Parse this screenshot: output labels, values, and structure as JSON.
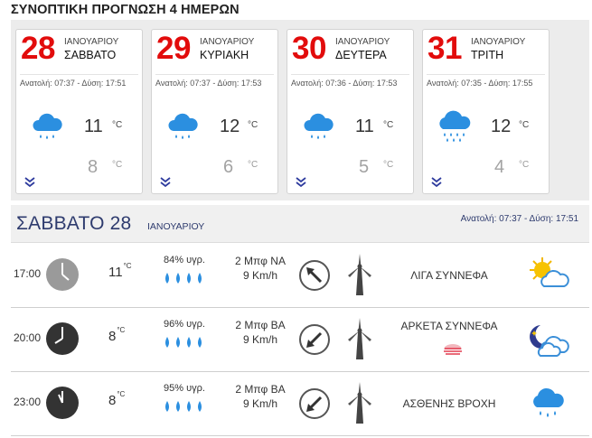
{
  "header": {
    "title": "ΣΥΝΟΠΤΙΚΗ ΠΡΟΓΝΩΣΗ 4 ΗΜΕΡΩΝ"
  },
  "days": [
    {
      "day": "28",
      "month": "ΙΑΝΟΥΑΡΙΟΥ",
      "name": "ΣΑΒΒΑΤΟ",
      "sun": "Ανατολή: 07:37 - Δύση: 17:51",
      "tmax": "11",
      "tmin": "8",
      "unit": "°C",
      "icon": "rain-cloud-icon"
    },
    {
      "day": "29",
      "month": "ΙΑΝΟΥΑΡΙΟΥ",
      "name": "ΚΥΡΙΑΚΗ",
      "sun": "Ανατολή: 07:37 - Δύση: 17:53",
      "tmax": "12",
      "tmin": "6",
      "unit": "°C",
      "icon": "rain-cloud-icon"
    },
    {
      "day": "30",
      "month": "ΙΑΝΟΥΑΡΙΟΥ",
      "name": "ΔΕΥΤΕΡΑ",
      "sun": "Ανατολή: 07:36 - Δύση: 17:53",
      "tmax": "11",
      "tmin": "5",
      "unit": "°C",
      "icon": "rain-cloud-icon"
    },
    {
      "day": "31",
      "month": "ΙΑΝΟΥΑΡΙΟΥ",
      "name": "ΤΡΙΤΗ",
      "sun": "Ανατολή: 07:35 - Δύση: 17:55",
      "tmax": "12",
      "tmin": "4",
      "unit": "°C",
      "icon": "heavy-rain-cloud-icon"
    }
  ],
  "selected_day": {
    "title": "ΣΑΒΒΑΤΟ 28",
    "month": "ΙΑΝΟΥΑΡΙΟΥ",
    "sun": "Ανατολή: 07:37 - Δύση: 17:51"
  },
  "hourly": [
    {
      "time": "17:00",
      "temp": "11",
      "unit": "°C",
      "humidity": "84% υγρ.",
      "beaufort": "2 Μπφ ΝΑ",
      "speed": "9 Km/h",
      "sky": "ΛΙΓΑ ΣΥΝΝΕΦΑ",
      "icon": "sun-cloud-icon",
      "clock_style": "light"
    },
    {
      "time": "20:00",
      "temp": "8",
      "unit": "°C",
      "humidity": "96% υγρ.",
      "beaufort": "2 Μπφ ΒΑ",
      "speed": "9 Km/h",
      "sky": "ΑΡΚΕΤΑ ΣΥΝΝΕΦΑ",
      "icon": "moon-cloud-icon",
      "clock_style": "dark"
    },
    {
      "time": "23:00",
      "temp": "8",
      "unit": "°C",
      "humidity": "95% υγρ.",
      "beaufort": "2 Μπφ ΒΑ",
      "speed": "9 Km/h",
      "sky": "ΑΣΘΕΝΗΣ ΒΡΟΧΗ",
      "icon": "rain-cloud-icon",
      "clock_style": "dark"
    }
  ],
  "colors": {
    "accent_red": "#e20c0c",
    "navy": "#2e3b6e",
    "rain_blue": "#2b8fe0"
  }
}
